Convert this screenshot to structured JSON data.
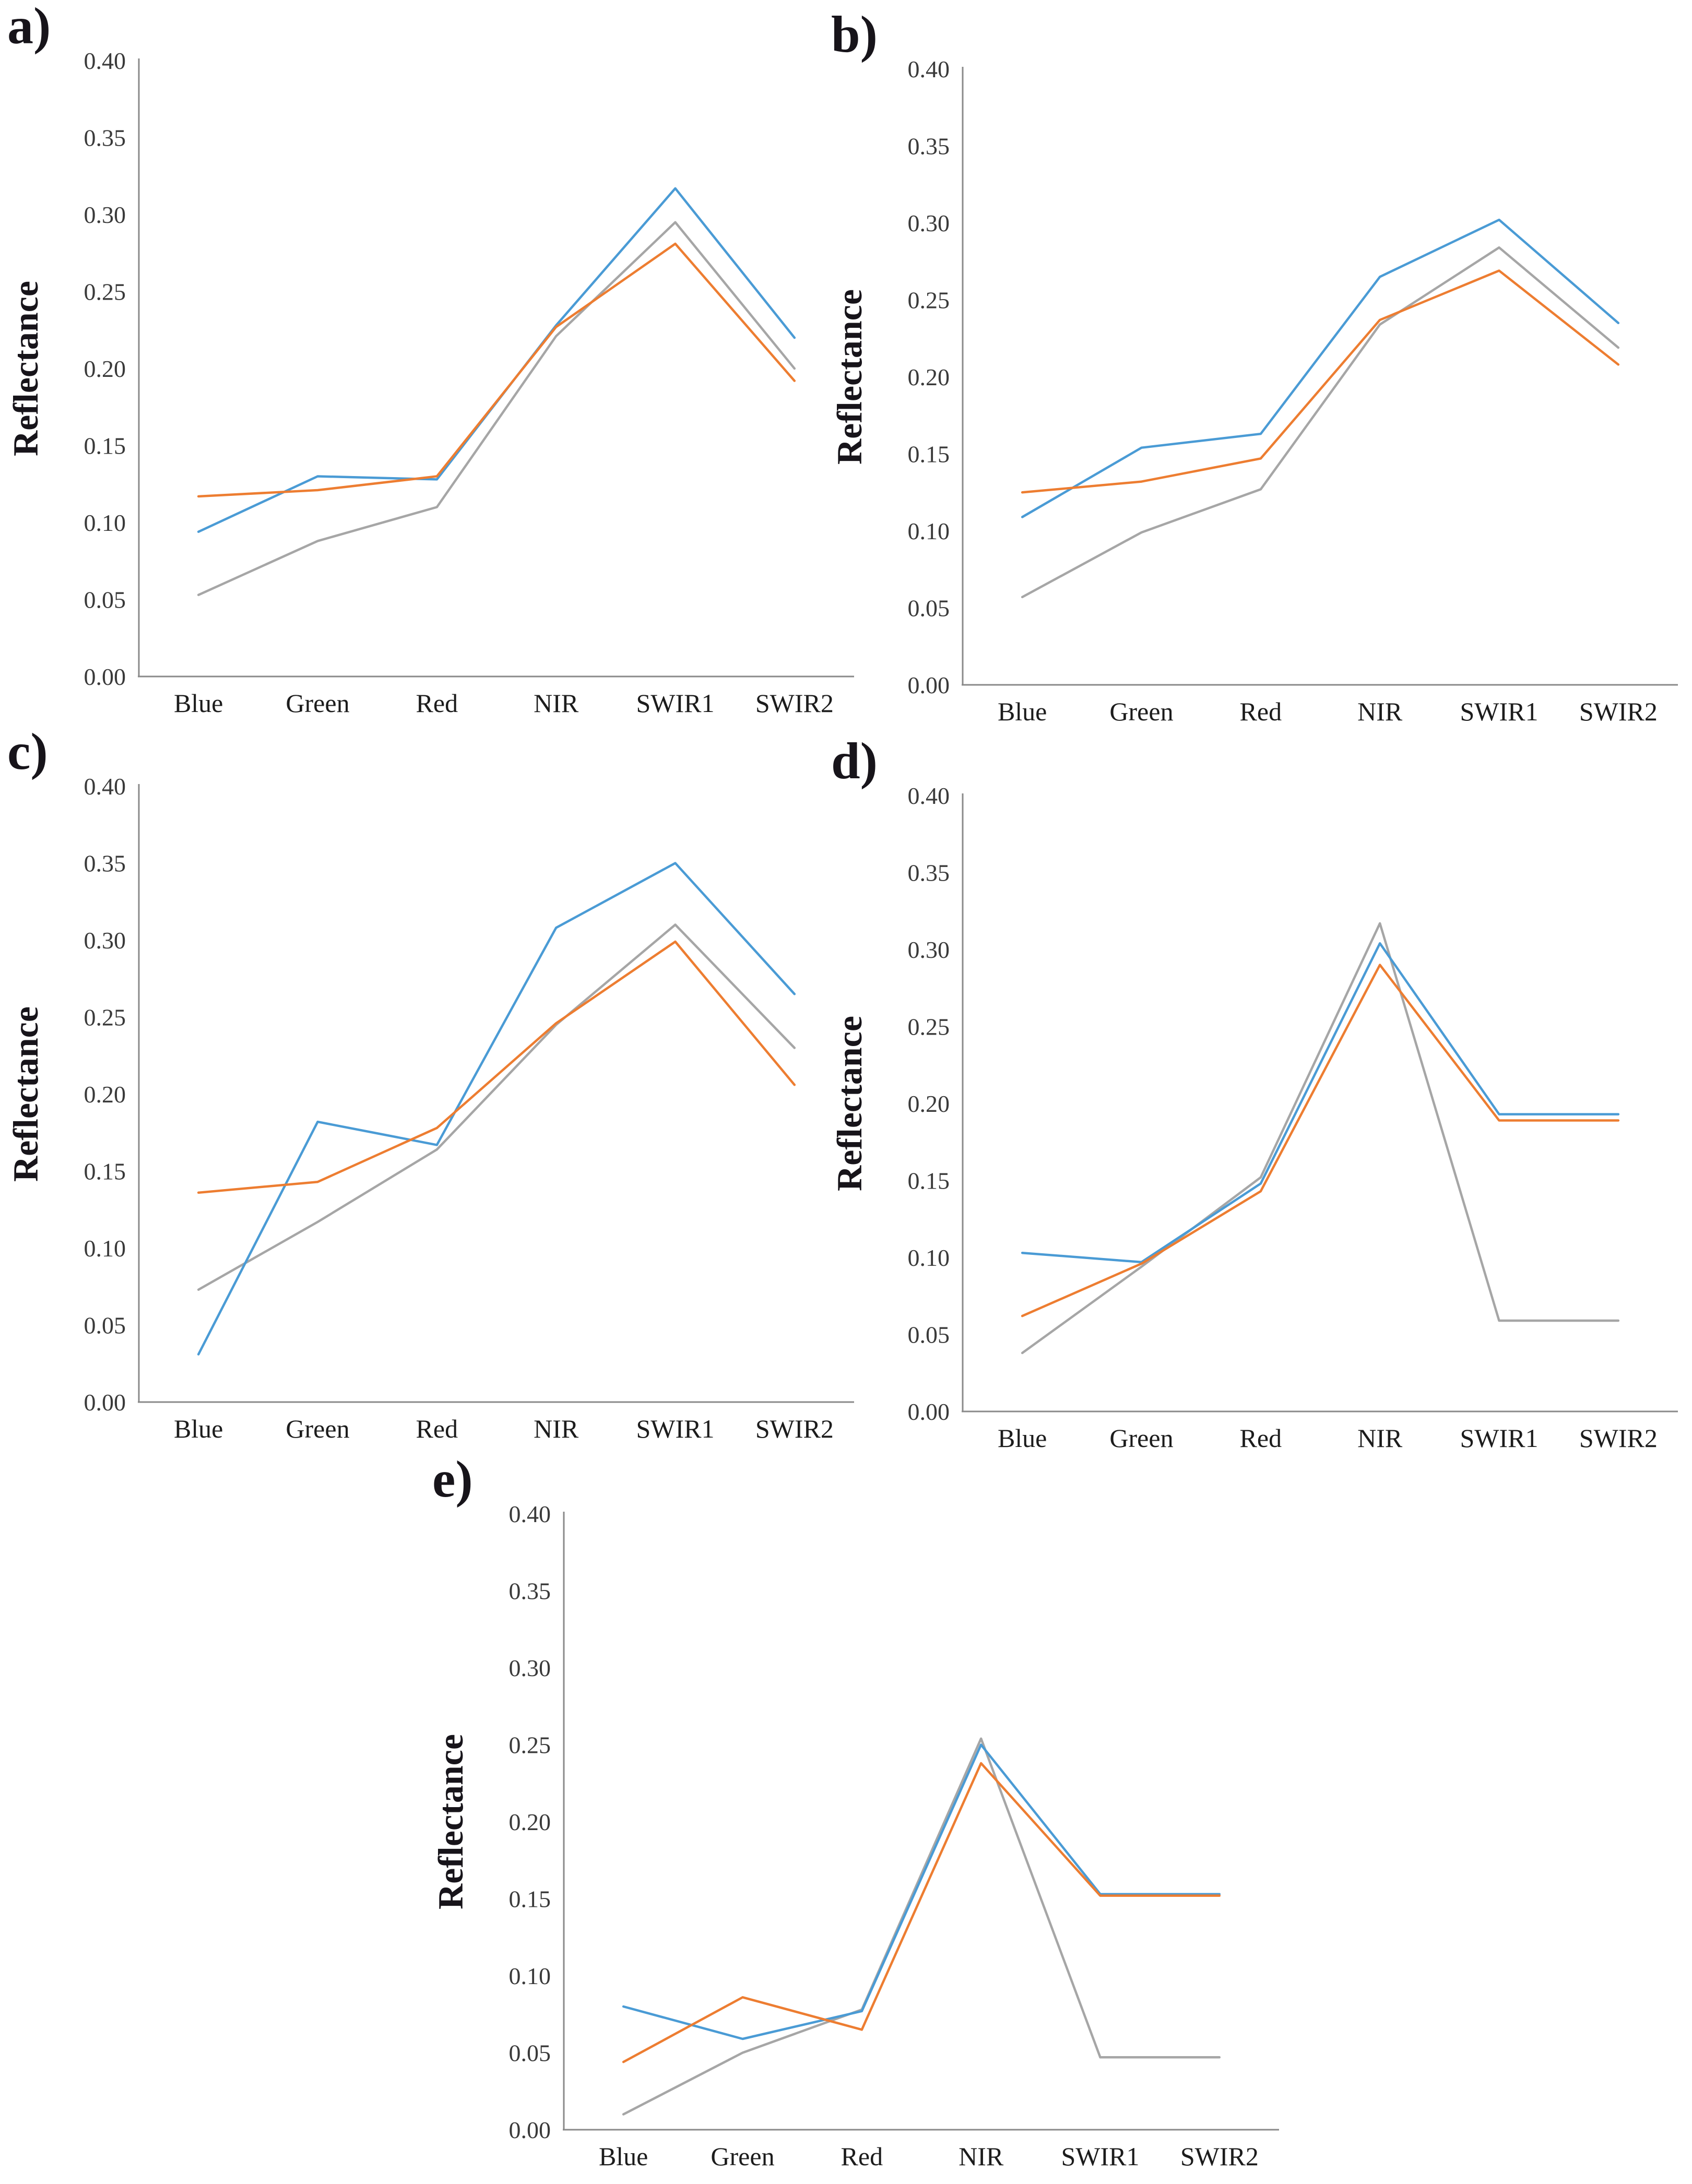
{
  "figure": {
    "description_visible_text_only": "Five line-chart panels labeled a) through e), each plotting Reflectance across six spectral bands"
  },
  "chart_data": [
    {
      "type": "line",
      "panel_label": "a)",
      "title": "",
      "xlabel": "",
      "ylabel": "Reflectance",
      "categories": [
        "Blue",
        "Green",
        "Red",
        "NIR",
        "SWIR1",
        "SWIR2"
      ],
      "ylim": [
        0.0,
        0.4
      ],
      "ytick_step": 0.05,
      "grid": false,
      "legend_position": "none",
      "series": [
        {
          "name": "series-blue",
          "color": "#4A9BD5",
          "values": [
            0.094,
            0.13,
            0.128,
            0.228,
            0.317,
            0.22
          ]
        },
        {
          "name": "series-orange",
          "color": "#ED7D31",
          "values": [
            0.117,
            0.121,
            0.13,
            0.227,
            0.281,
            0.192
          ]
        },
        {
          "name": "series-gray",
          "color": "#A6A6A6",
          "values": [
            0.053,
            0.088,
            0.11,
            0.221,
            0.295,
            0.2
          ]
        }
      ]
    },
    {
      "type": "line",
      "panel_label": "b)",
      "title": "",
      "xlabel": "",
      "ylabel": "Reflectance",
      "categories": [
        "Blue",
        "Green",
        "Red",
        "NIR",
        "SWIR1",
        "SWIR2"
      ],
      "ylim": [
        0.0,
        0.4
      ],
      "ytick_step": 0.05,
      "grid": false,
      "legend_position": "none",
      "series": [
        {
          "name": "series-blue",
          "color": "#4A9BD5",
          "values": [
            0.109,
            0.154,
            0.163,
            0.265,
            0.302,
            0.235
          ]
        },
        {
          "name": "series-orange",
          "color": "#ED7D31",
          "values": [
            0.125,
            0.132,
            0.147,
            0.237,
            0.269,
            0.208
          ]
        },
        {
          "name": "series-gray",
          "color": "#A6A6A6",
          "values": [
            0.057,
            0.099,
            0.127,
            0.234,
            0.284,
            0.219
          ]
        }
      ]
    },
    {
      "type": "line",
      "panel_label": "c)",
      "title": "",
      "xlabel": "",
      "ylabel": "Reflectance",
      "categories": [
        "Blue",
        "Green",
        "Red",
        "NIR",
        "SWIR1",
        "SWIR2"
      ],
      "ylim": [
        0.0,
        0.4
      ],
      "ytick_step": 0.05,
      "grid": false,
      "legend_position": "none",
      "series": [
        {
          "name": "series-blue",
          "color": "#4A9BD5",
          "values": [
            0.031,
            0.182,
            0.167,
            0.308,
            0.35,
            0.265
          ]
        },
        {
          "name": "series-orange",
          "color": "#ED7D31",
          "values": [
            0.136,
            0.143,
            0.178,
            0.246,
            0.299,
            0.206
          ]
        },
        {
          "name": "series-gray",
          "color": "#A6A6A6",
          "values": [
            0.073,
            0.117,
            0.164,
            0.245,
            0.31,
            0.23
          ]
        }
      ]
    },
    {
      "type": "line",
      "panel_label": "d)",
      "title": "",
      "xlabel": "",
      "ylabel": "Reflectance",
      "categories": [
        "Blue",
        "Green",
        "Red",
        "NIR",
        "SWIR1",
        "SWIR2"
      ],
      "ylim": [
        0.0,
        0.4
      ],
      "ytick_step": 0.05,
      "grid": false,
      "legend_position": "none",
      "series": [
        {
          "name": "series-blue",
          "color": "#4A9BD5",
          "values": [
            0.103,
            0.097,
            0.148,
            0.304,
            0.193,
            0.193
          ]
        },
        {
          "name": "series-orange",
          "color": "#ED7D31",
          "values": [
            0.062,
            0.096,
            0.143,
            0.29,
            0.189,
            0.189
          ]
        },
        {
          "name": "series-gray",
          "color": "#A6A6A6",
          "values": [
            0.038,
            0.094,
            0.152,
            0.317,
            0.059,
            0.059
          ]
        }
      ]
    },
    {
      "type": "line",
      "panel_label": "e)",
      "title": "",
      "xlabel": "",
      "ylabel": "Reflectance",
      "categories": [
        "Blue",
        "Green",
        "Red",
        "NIR",
        "SWIR1",
        "SWIR2"
      ],
      "ylim": [
        0.0,
        0.4
      ],
      "ytick_step": 0.05,
      "grid": false,
      "legend_position": "none",
      "series": [
        {
          "name": "series-blue",
          "color": "#4A9BD5",
          "values": [
            0.08,
            0.059,
            0.077,
            0.25,
            0.153,
            0.153
          ]
        },
        {
          "name": "series-orange",
          "color": "#ED7D31",
          "values": [
            0.044,
            0.086,
            0.065,
            0.238,
            0.152,
            0.152
          ]
        },
        {
          "name": "series-gray",
          "color": "#A6A6A6",
          "values": [
            0.01,
            0.05,
            0.078,
            0.254,
            0.047,
            0.047
          ]
        }
      ]
    }
  ],
  "axis_style": {
    "axis_line_color": "#8a8a8a",
    "tick_label_color": "#3a3a3a"
  }
}
